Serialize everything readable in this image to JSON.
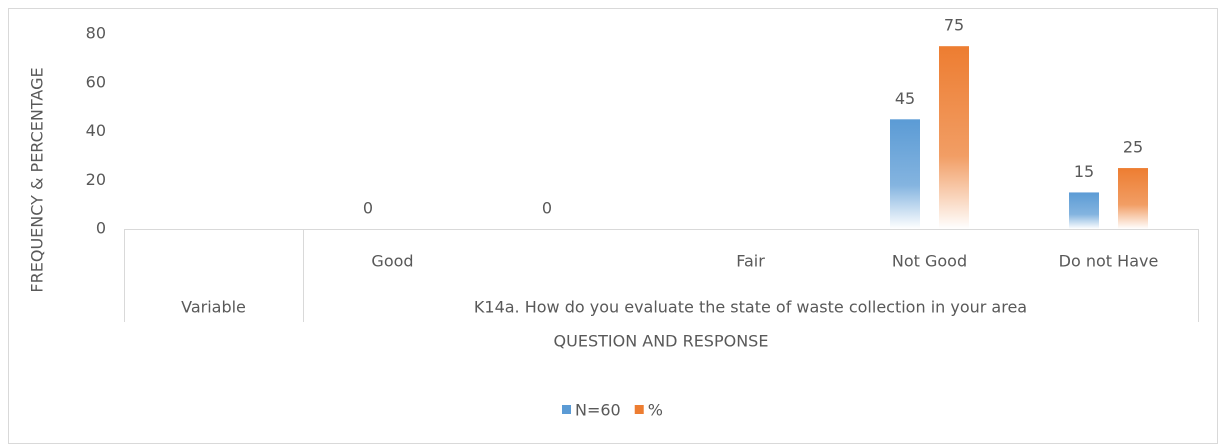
{
  "chart_data": {
    "type": "bar",
    "y_label": "FREQUENCY & PERCENTAGE",
    "x_label": "QUESTION AND RESPONSE",
    "categories": [
      null,
      "Good",
      null,
      "Fair",
      "Not Good",
      "Do not Have"
    ],
    "groups": [
      {
        "label": "Variable",
        "span": 1
      },
      {
        "label": "K14a. How do you evaluate the state of waste collection in your area",
        "span": 5
      }
    ],
    "series": [
      {
        "name": "N=60",
        "color": "#5b9bd5",
        "values": [
          null,
          0,
          0,
          null,
          45,
          15
        ]
      },
      {
        "name": "%",
        "color": "#ed7d31",
        "values": [
          null,
          null,
          null,
          null,
          75,
          25
        ]
      }
    ],
    "ylim": [
      0,
      80
    ],
    "yticks": [
      0,
      20,
      40,
      60,
      80
    ],
    "grid": false,
    "legend": "bottom"
  }
}
